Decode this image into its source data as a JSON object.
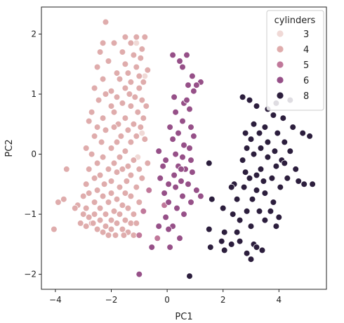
{
  "chart_data": {
    "type": "scatter",
    "title": "",
    "xlabel": "PC1",
    "ylabel": "PC2",
    "xlim": [
      -4.5,
      5.7
    ],
    "ylim": [
      -2.25,
      2.45
    ],
    "xticks": [
      -4,
      -2,
      0,
      2,
      4
    ],
    "yticks": [
      -2,
      -1,
      0,
      1,
      2
    ],
    "grid": false,
    "legend": {
      "title": "cylinders",
      "placement": "top-right"
    },
    "series": [
      {
        "name": "3",
        "color": "#f0d9d6",
        "points": [
          [
            -1.1,
            1.85
          ],
          [
            -0.8,
            1.3
          ],
          [
            -0.9,
            0.35
          ],
          [
            -1.05,
            -0.05
          ]
        ]
      },
      {
        "name": "4",
        "color": "#dfacac",
        "points": [
          [
            -2.2,
            2.2
          ],
          [
            -1.5,
            1.95
          ],
          [
            -1.1,
            1.95
          ],
          [
            -0.8,
            1.95
          ],
          [
            -2.3,
            1.85
          ],
          [
            -1.9,
            1.85
          ],
          [
            -1.3,
            1.85
          ],
          [
            -0.9,
            1.75
          ],
          [
            -2.4,
            1.7
          ],
          [
            -1.6,
            1.7
          ],
          [
            -1.2,
            1.65
          ],
          [
            -0.95,
            1.6
          ],
          [
            -2.1,
            1.55
          ],
          [
            -1.5,
            1.5
          ],
          [
            -1.1,
            1.45
          ],
          [
            -0.7,
            1.4
          ],
          [
            -1.8,
            1.35
          ],
          [
            -1.4,
            1.35
          ],
          [
            -2.5,
            1.45
          ],
          [
            -1.0,
            1.3
          ],
          [
            -2.3,
            1.25
          ],
          [
            -1.7,
            1.25
          ],
          [
            -1.3,
            1.2
          ],
          [
            -0.85,
            1.2
          ],
          [
            -2.6,
            1.1
          ],
          [
            -1.5,
            1.1
          ],
          [
            -1.0,
            1.1
          ],
          [
            -2.0,
            1.05
          ],
          [
            -2.2,
            1.0
          ],
          [
            -1.35,
            1.0
          ],
          [
            -1.8,
            0.95
          ],
          [
            -1.15,
            0.95
          ],
          [
            -2.45,
            0.9
          ],
          [
            -0.9,
            0.9
          ],
          [
            -1.6,
            0.85
          ],
          [
            -2.0,
            0.8
          ],
          [
            -1.3,
            0.8
          ],
          [
            -0.75,
            0.8
          ],
          [
            -2.7,
            0.7
          ],
          [
            -1.9,
            0.7
          ],
          [
            -1.05,
            0.7
          ],
          [
            -2.3,
            0.6
          ],
          [
            -1.5,
            0.6
          ],
          [
            -0.85,
            0.6
          ],
          [
            -2.8,
            0.55
          ],
          [
            -1.75,
            0.5
          ],
          [
            -1.2,
            0.5
          ],
          [
            -2.5,
            0.45
          ],
          [
            -1.9,
            0.45
          ],
          [
            -0.95,
            0.45
          ],
          [
            -2.2,
            0.4
          ],
          [
            -1.4,
            0.4
          ],
          [
            -2.6,
            0.3
          ],
          [
            -1.65,
            0.3
          ],
          [
            -1.1,
            0.3
          ],
          [
            -2.35,
            0.2
          ],
          [
            -1.8,
            0.2
          ],
          [
            -1.3,
            0.2
          ],
          [
            -0.8,
            0.25
          ],
          [
            -2.9,
            0.1
          ],
          [
            -2.0,
            0.1
          ],
          [
            -1.5,
            0.05
          ],
          [
            -2.7,
            0.0
          ],
          [
            -2.3,
            -0.05
          ],
          [
            -1.7,
            -0.05
          ],
          [
            -1.2,
            -0.1
          ],
          [
            -2.5,
            -0.15
          ],
          [
            -1.9,
            -0.15
          ],
          [
            -1.4,
            -0.2
          ],
          [
            -0.7,
            -0.15
          ],
          [
            -2.8,
            -0.25
          ],
          [
            -2.1,
            -0.25
          ],
          [
            -1.6,
            -0.25
          ],
          [
            -1.0,
            -0.25
          ],
          [
            -3.6,
            -0.25
          ],
          [
            -2.4,
            -0.35
          ],
          [
            -1.8,
            -0.3
          ],
          [
            -1.3,
            -0.35
          ],
          [
            -2.6,
            -0.4
          ],
          [
            -2.0,
            -0.45
          ],
          [
            -1.45,
            -0.45
          ],
          [
            -0.9,
            -0.4
          ],
          [
            -2.9,
            -0.5
          ],
          [
            -2.25,
            -0.5
          ],
          [
            -1.7,
            -0.55
          ],
          [
            -1.1,
            -0.55
          ],
          [
            -2.5,
            -0.6
          ],
          [
            -2.0,
            -0.65
          ],
          [
            -1.5,
            -0.65
          ],
          [
            -2.8,
            -0.65
          ],
          [
            -3.0,
            -0.7
          ],
          [
            -2.3,
            -0.7
          ],
          [
            -1.8,
            -0.75
          ],
          [
            -1.3,
            -0.7
          ],
          [
            -2.6,
            -0.8
          ],
          [
            -2.1,
            -0.8
          ],
          [
            -1.6,
            -0.85
          ],
          [
            -1.0,
            -0.8
          ],
          [
            -3.2,
            -0.85
          ],
          [
            -2.9,
            -0.9
          ],
          [
            -2.4,
            -0.9
          ],
          [
            -1.9,
            -0.95
          ],
          [
            -1.4,
            -0.9
          ],
          [
            -3.0,
            -1.0
          ],
          [
            -2.6,
            -1.0
          ],
          [
            -2.2,
            -1.0
          ],
          [
            -1.7,
            -1.0
          ],
          [
            -1.2,
            -1.0
          ],
          [
            -2.8,
            -1.05
          ],
          [
            -2.4,
            -1.1
          ],
          [
            -2.0,
            -1.1
          ],
          [
            -1.5,
            -1.1
          ],
          [
            -3.1,
            -1.15
          ],
          [
            -2.7,
            -1.15
          ],
          [
            -2.2,
            -1.2
          ],
          [
            -1.8,
            -1.15
          ],
          [
            -1.3,
            -1.15
          ],
          [
            -2.9,
            -1.2
          ],
          [
            -2.5,
            -1.25
          ],
          [
            -2.0,
            -1.25
          ],
          [
            -1.6,
            -1.25
          ],
          [
            -2.3,
            -1.3
          ],
          [
            -1.85,
            -1.35
          ],
          [
            -1.4,
            -1.3
          ],
          [
            -2.1,
            -1.35
          ],
          [
            -1.2,
            -1.35
          ],
          [
            -3.9,
            -0.8
          ],
          [
            -3.7,
            -0.75
          ],
          [
            -4.05,
            -1.25
          ],
          [
            -1.1,
            -1.15
          ],
          [
            -2.65,
            -1.15
          ],
          [
            -3.3,
            -0.9
          ],
          [
            -1.55,
            -1.35
          ]
        ]
      },
      {
        "name": "5",
        "color": "#c0789a",
        "points": [
          [
            -0.65,
            -0.6
          ],
          [
            -0.85,
            -0.95
          ],
          [
            -0.35,
            -1.4
          ],
          [
            -0.1,
            -0.85
          ],
          [
            -1.0,
            -1.35
          ]
        ]
      },
      {
        "name": "6",
        "color": "#965088",
        "points": [
          [
            0.2,
            1.65
          ],
          [
            0.45,
            1.55
          ],
          [
            0.7,
            1.65
          ],
          [
            0.55,
            1.45
          ],
          [
            0.9,
            1.3
          ],
          [
            1.2,
            1.2
          ],
          [
            0.75,
            1.15
          ],
          [
            1.05,
            1.15
          ],
          [
            0.95,
            1.05
          ],
          [
            0.25,
            0.95
          ],
          [
            0.6,
            0.85
          ],
          [
            0.8,
            0.75
          ],
          [
            0.3,
            0.7
          ],
          [
            0.55,
            0.55
          ],
          [
            0.85,
            0.45
          ],
          [
            0.1,
            0.45
          ],
          [
            0.4,
            0.35
          ],
          [
            0.95,
            0.3
          ],
          [
            0.2,
            0.25
          ],
          [
            0.6,
            0.15
          ],
          [
            0.8,
            0.1
          ],
          [
            -0.3,
            0.05
          ],
          [
            0.3,
            0.0
          ],
          [
            0.55,
            -0.05
          ],
          [
            -0.05,
            -0.1
          ],
          [
            0.85,
            -0.1
          ],
          [
            0.4,
            -0.2
          ],
          [
            -0.15,
            -0.2
          ],
          [
            0.65,
            -0.25
          ],
          [
            0.25,
            -0.35
          ],
          [
            0.9,
            -0.3
          ],
          [
            -0.25,
            -0.4
          ],
          [
            0.5,
            -0.45
          ],
          [
            0.05,
            -0.5
          ],
          [
            0.75,
            -0.5
          ],
          [
            1.05,
            -0.6
          ],
          [
            0.3,
            -0.55
          ],
          [
            -0.1,
            -0.65
          ],
          [
            0.55,
            -0.7
          ],
          [
            1.2,
            -0.7
          ],
          [
            0.05,
            -0.8
          ],
          [
            0.85,
            -0.8
          ],
          [
            0.35,
            -0.9
          ],
          [
            -0.05,
            -1.05
          ],
          [
            0.6,
            -1.0
          ],
          [
            0.2,
            -1.2
          ],
          [
            0.45,
            -1.4
          ],
          [
            0.05,
            -1.25
          ],
          [
            -0.3,
            -1.2
          ],
          [
            0.1,
            -1.55
          ],
          [
            -0.55,
            -1.55
          ],
          [
            -1.0,
            -2.0
          ],
          [
            0.5,
            -0.25
          ],
          [
            0.7,
            0.9
          ]
        ]
      },
      {
        "name": "8",
        "color": "#2c1e3d",
        "points": [
          [
            2.7,
            0.95
          ],
          [
            3.2,
            0.8
          ],
          [
            3.6,
            0.75
          ],
          [
            3.9,
            0.85
          ],
          [
            4.4,
            0.9
          ],
          [
            2.95,
            0.9
          ],
          [
            3.8,
            0.65
          ],
          [
            4.15,
            0.6
          ],
          [
            3.1,
            0.5
          ],
          [
            3.5,
            0.45
          ],
          [
            4.5,
            0.45
          ],
          [
            2.8,
            0.35
          ],
          [
            3.3,
            0.35
          ],
          [
            3.95,
            0.35
          ],
          [
            5.1,
            0.3
          ],
          [
            3.0,
            0.25
          ],
          [
            3.6,
            0.2
          ],
          [
            4.2,
            0.2
          ],
          [
            4.85,
            0.35
          ],
          [
            2.85,
            0.1
          ],
          [
            3.35,
            0.1
          ],
          [
            3.85,
            0.05
          ],
          [
            4.4,
            0.05
          ],
          [
            3.1,
            0.0
          ],
          [
            3.6,
            -0.05
          ],
          [
            4.1,
            -0.1
          ],
          [
            2.7,
            -0.1
          ],
          [
            3.9,
            -0.2
          ],
          [
            3.35,
            -0.25
          ],
          [
            4.6,
            -0.25
          ],
          [
            2.8,
            -0.3
          ],
          [
            3.2,
            -0.35
          ],
          [
            3.75,
            -0.4
          ],
          [
            4.3,
            -0.4
          ],
          [
            1.5,
            -0.15
          ],
          [
            2.4,
            -0.5
          ],
          [
            4.7,
            -0.45
          ],
          [
            4.9,
            -0.5
          ],
          [
            5.2,
            -0.5
          ],
          [
            2.3,
            -0.55
          ],
          [
            2.75,
            -0.55
          ],
          [
            3.2,
            -0.6
          ],
          [
            3.5,
            -0.65
          ],
          [
            3.05,
            -0.75
          ],
          [
            2.5,
            -0.75
          ],
          [
            1.6,
            -0.75
          ],
          [
            2.0,
            -0.9
          ],
          [
            2.85,
            -0.95
          ],
          [
            3.3,
            -0.95
          ],
          [
            3.7,
            -0.95
          ],
          [
            2.35,
            -1.0
          ],
          [
            4.0,
            -1.05
          ],
          [
            2.6,
            -1.1
          ],
          [
            3.5,
            -1.1
          ],
          [
            1.5,
            -1.25
          ],
          [
            2.05,
            -1.3
          ],
          [
            2.5,
            -1.3
          ],
          [
            3.0,
            -1.2
          ],
          [
            3.9,
            -1.2
          ],
          [
            1.95,
            -1.45
          ],
          [
            2.3,
            -1.5
          ],
          [
            2.6,
            -1.45
          ],
          [
            3.1,
            -1.5
          ],
          [
            2.05,
            -1.6
          ],
          [
            3.4,
            -1.6
          ],
          [
            3.0,
            -1.75
          ],
          [
            2.85,
            -1.65
          ],
          [
            1.55,
            -1.55
          ],
          [
            3.2,
            -1.55
          ],
          [
            0.8,
            -2.03
          ],
          [
            4.2,
            -0.15
          ],
          [
            2.95,
            -0.4
          ],
          [
            3.45,
            -0.45
          ],
          [
            4.05,
            -0.55
          ],
          [
            3.8,
            -0.8
          ]
        ]
      }
    ]
  }
}
